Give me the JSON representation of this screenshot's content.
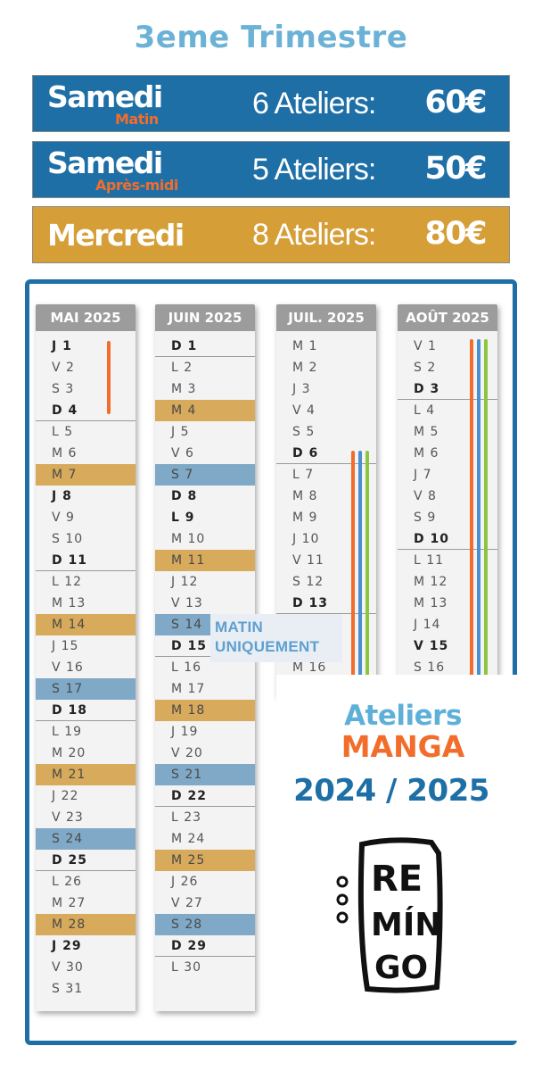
{
  "title": "3eme Trimestre",
  "colors": {
    "blue": "#1d6fa6",
    "gold": "#d59e37",
    "orange_accent": "#f26d2b",
    "light_blue": "#6cb2d6",
    "row_orange": "#d8aa5b",
    "row_blue": "#7fa9c6",
    "line_green": "#8cc63f",
    "line_blue": "#4a8fd0"
  },
  "pricing": [
    {
      "day": "Samedi",
      "sub": "Matin",
      "ateliers": "6 Ateliers:",
      "price": "60€"
    },
    {
      "day": "Samedi",
      "sub": "Après-midi",
      "ateliers": "5 Ateliers:",
      "price": "50€"
    },
    {
      "day": "Mercredi",
      "sub": "",
      "ateliers": "8 Ateliers:",
      "price": "80€"
    }
  ],
  "months": [
    {
      "title": "MAI 2025",
      "days": [
        {
          "t": "J 1",
          "b": true
        },
        {
          "t": "V 2"
        },
        {
          "t": "S 3"
        },
        {
          "t": "D 4",
          "b": true,
          "sep": true
        },
        {
          "t": "L 5"
        },
        {
          "t": "M 6"
        },
        {
          "t": "M 7",
          "h": "orange"
        },
        {
          "t": "J 8",
          "b": true
        },
        {
          "t": "V 9"
        },
        {
          "t": "S 10"
        },
        {
          "t": "D 11",
          "b": true,
          "sep": true
        },
        {
          "t": "L 12"
        },
        {
          "t": "M 13"
        },
        {
          "t": "M 14",
          "h": "orange"
        },
        {
          "t": "J 15"
        },
        {
          "t": "V 16"
        },
        {
          "t": "S 17",
          "h": "blue"
        },
        {
          "t": "D 18",
          "b": true,
          "sep": true
        },
        {
          "t": "L 19"
        },
        {
          "t": "M 20"
        },
        {
          "t": "M 21",
          "h": "orange"
        },
        {
          "t": "J 22"
        },
        {
          "t": "V 23"
        },
        {
          "t": "S 24",
          "h": "blue"
        },
        {
          "t": "D 25",
          "b": true,
          "sep": true
        },
        {
          "t": "L 26"
        },
        {
          "t": "M 27"
        },
        {
          "t": "M 28",
          "h": "orange"
        },
        {
          "t": "J 29",
          "b": true
        },
        {
          "t": "V 30"
        },
        {
          "t": "S 31"
        }
      ]
    },
    {
      "title": "JUIN 2025",
      "days": [
        {
          "t": "D 1",
          "b": true,
          "sep": true
        },
        {
          "t": "L 2"
        },
        {
          "t": "M 3"
        },
        {
          "t": "M 4",
          "h": "orange"
        },
        {
          "t": "J 5"
        },
        {
          "t": "V 6"
        },
        {
          "t": "S 7",
          "h": "blue"
        },
        {
          "t": "D 8",
          "b": true
        },
        {
          "t": "L 9",
          "b": true
        },
        {
          "t": "M 10"
        },
        {
          "t": "M 11",
          "h": "orange"
        },
        {
          "t": "J 12"
        },
        {
          "t": "V 13"
        },
        {
          "t": "S 14",
          "h": "blue"
        },
        {
          "t": "D 15",
          "b": true,
          "sep": true
        },
        {
          "t": "L 16"
        },
        {
          "t": "M 17"
        },
        {
          "t": "M 18",
          "h": "orange"
        },
        {
          "t": "J 19"
        },
        {
          "t": "V 20"
        },
        {
          "t": "S 21",
          "h": "blue"
        },
        {
          "t": "D 22",
          "b": true,
          "sep": true
        },
        {
          "t": "L 23"
        },
        {
          "t": "M 24"
        },
        {
          "t": "M 25",
          "h": "orange"
        },
        {
          "t": "J 26"
        },
        {
          "t": "V 27"
        },
        {
          "t": "S 28",
          "h": "blue"
        },
        {
          "t": "D 29",
          "b": true,
          "sep": true
        },
        {
          "t": "L 30"
        }
      ]
    },
    {
      "title": "JUIL. 2025",
      "days": [
        {
          "t": "M 1"
        },
        {
          "t": "M 2"
        },
        {
          "t": "J 3"
        },
        {
          "t": "V 4"
        },
        {
          "t": "S 5"
        },
        {
          "t": "D 6",
          "b": true,
          "sep": true
        },
        {
          "t": "L 7"
        },
        {
          "t": "M 8"
        },
        {
          "t": "M 9"
        },
        {
          "t": "J 10"
        },
        {
          "t": "V 11"
        },
        {
          "t": "S 12"
        },
        {
          "t": "D 13",
          "b": true,
          "sep": true
        },
        {
          "t": "L 14"
        },
        {
          "t": "M 15"
        },
        {
          "t": "M 16"
        }
      ]
    },
    {
      "title": "AOÛT 2025",
      "days": [
        {
          "t": "V 1"
        },
        {
          "t": "S 2"
        },
        {
          "t": "D 3",
          "b": true,
          "sep": true
        },
        {
          "t": "L 4"
        },
        {
          "t": "M 5"
        },
        {
          "t": "M 6"
        },
        {
          "t": "J 7"
        },
        {
          "t": "V 8"
        },
        {
          "t": "S 9"
        },
        {
          "t": "D 10",
          "b": true,
          "sep": true
        },
        {
          "t": "L 11"
        },
        {
          "t": "M 12"
        },
        {
          "t": "M 13"
        },
        {
          "t": "J 14"
        },
        {
          "t": "V 15",
          "b": true
        },
        {
          "t": "S 16"
        }
      ]
    }
  ],
  "note": "MATIN UNIQUEMENT",
  "ateliers_line": "Ateliers",
  "manga_line": "MANGA",
  "years_line": "2024 / 2025",
  "logo_text": "RE MÍN GO"
}
